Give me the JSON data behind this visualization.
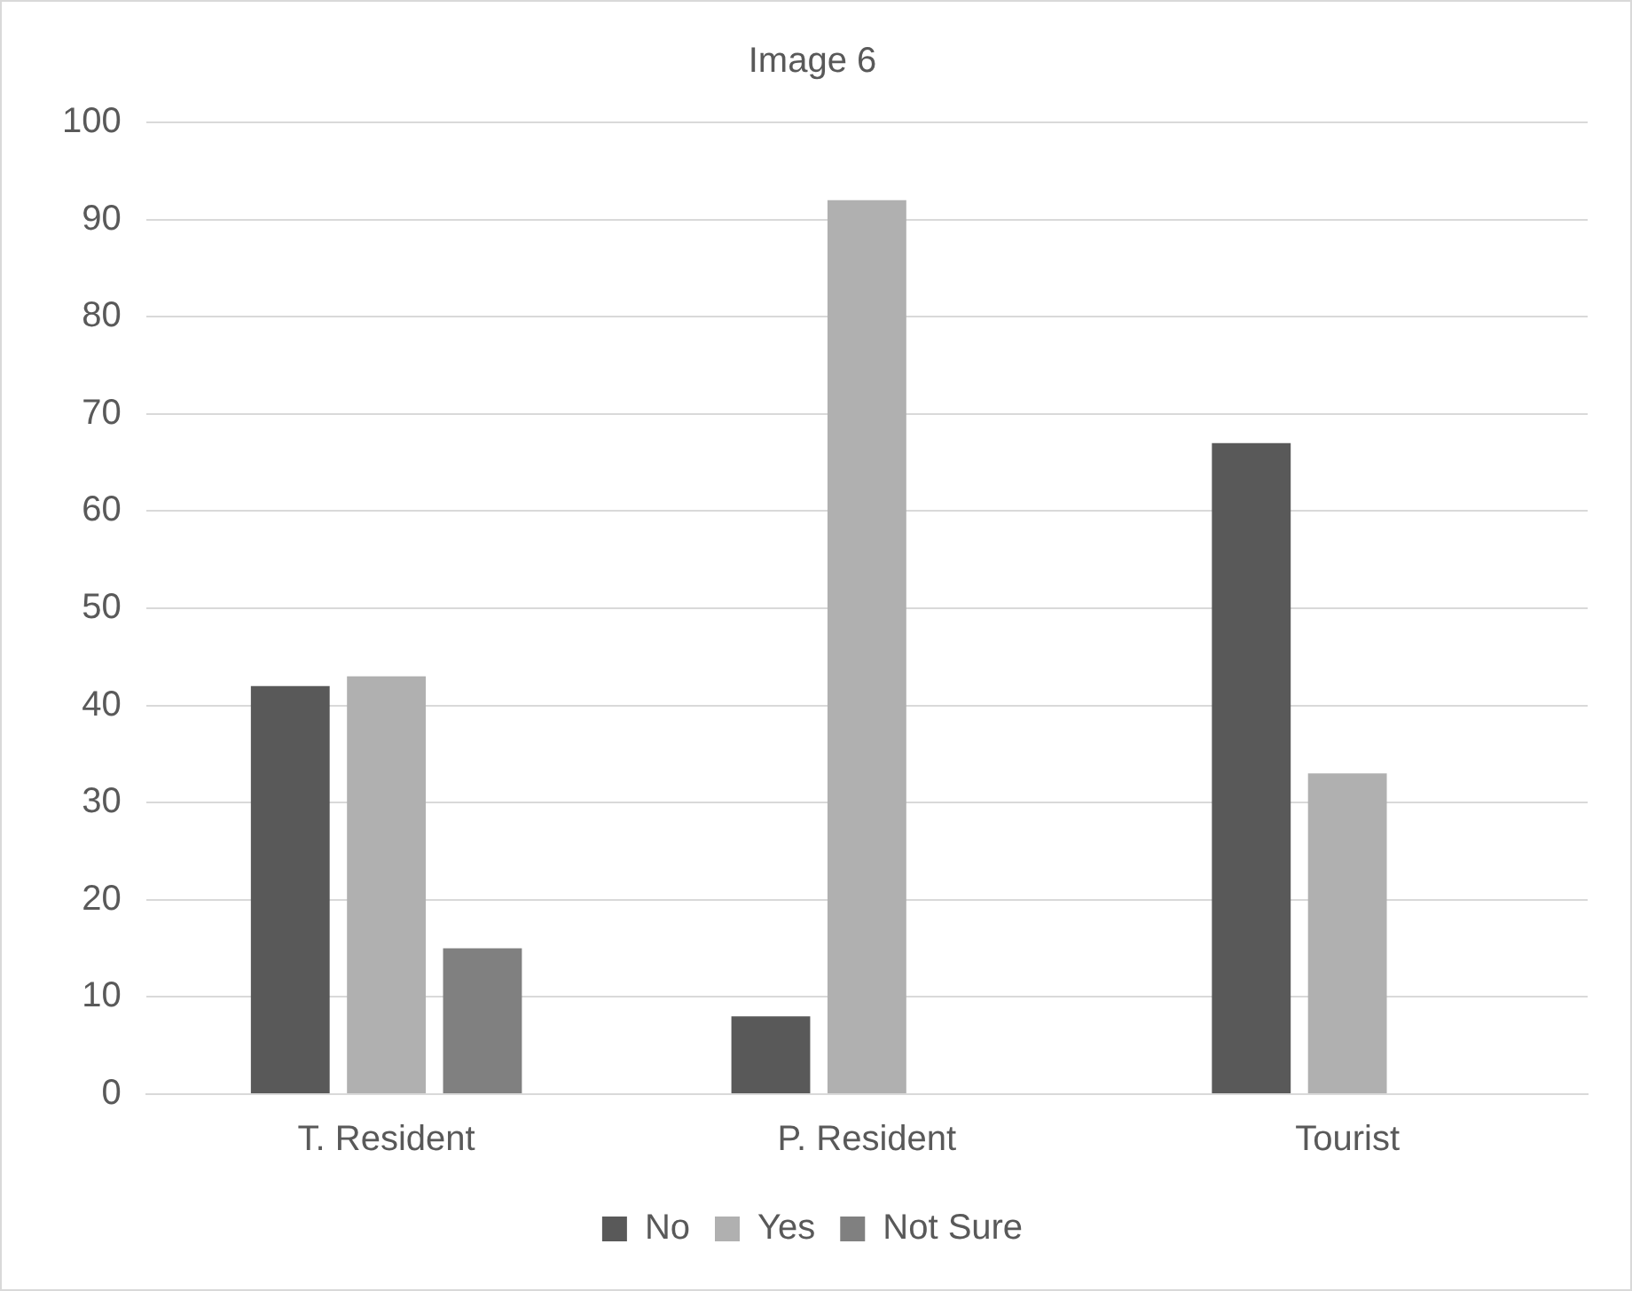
{
  "chart_data": {
    "type": "bar",
    "title": "Image 6",
    "categories": [
      "T. Resident",
      "P. Resident",
      "Tourist"
    ],
    "series": [
      {
        "name": "No",
        "color": "#595959",
        "values": [
          42,
          8,
          67
        ]
      },
      {
        "name": "Yes",
        "color": "#b0b0b0",
        "values": [
          43,
          92,
          33
        ]
      },
      {
        "name": "Not Sure",
        "color": "#808080",
        "values": [
          15,
          0,
          0
        ]
      }
    ],
    "ylim": [
      0,
      100
    ],
    "yticks": [
      0,
      10,
      20,
      30,
      40,
      50,
      60,
      70,
      80,
      90,
      100
    ],
    "grid": "y",
    "legend": "bottom"
  }
}
